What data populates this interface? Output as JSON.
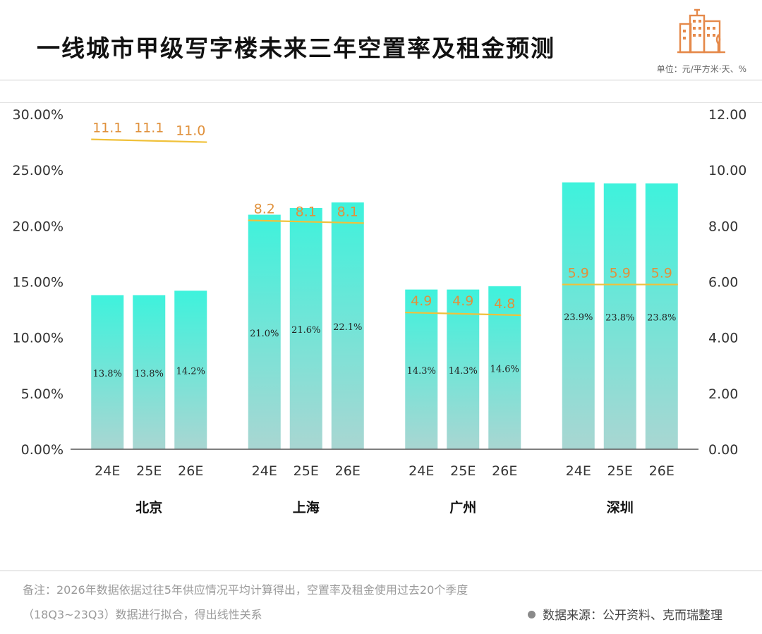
{
  "header": {
    "title": "一线城市甲级写字楼未来三年空置率及租金预测",
    "unit": "单位：元/平方米·天、%"
  },
  "footer": {
    "note_line1": "备注：2026年数据依据过往5年供应情况平均计算得出，空置率及租金使用过去20个季度",
    "note_line2": "（18Q3~23Q3）数据进行拟合，得出线性关系",
    "source": "数据来源：公开资料、克而瑞整理"
  },
  "colors": {
    "bar_top": "#3ef2dc",
    "bar_bottom": "#a9d6d2",
    "rent_label": "#e0913c",
    "rent_line": "#f0c13a",
    "axis": "#555555",
    "logo": "#e5894a"
  },
  "chart_data": {
    "type": "bar",
    "title": "一线城市甲级写字楼未来三年空置率及租金预测",
    "groups": [
      "北京",
      "上海",
      "广州",
      "深圳"
    ],
    "categories": [
      "24E",
      "25E",
      "26E"
    ],
    "series": [
      {
        "name": "空置率",
        "axis": "left",
        "values": [
          [
            13.8,
            13.8,
            14.2
          ],
          [
            21.0,
            21.6,
            22.1
          ],
          [
            14.3,
            14.3,
            14.6
          ],
          [
            23.9,
            23.8,
            23.8
          ]
        ],
        "labels": [
          [
            "13.8%",
            "13.8%",
            "14.2%"
          ],
          [
            "21.0%",
            "21.6%",
            "22.1%"
          ],
          [
            "14.3%",
            "14.3%",
            "14.6%"
          ],
          [
            "23.9%",
            "23.8%",
            "23.8%"
          ]
        ]
      },
      {
        "name": "租金",
        "axis": "right",
        "values": [
          [
            11.1,
            11.1,
            11.0
          ],
          [
            8.2,
            8.1,
            8.1
          ],
          [
            4.9,
            4.9,
            4.8
          ],
          [
            5.9,
            5.9,
            5.9
          ]
        ],
        "labels": [
          [
            "11.1",
            "11.1",
            "11.0"
          ],
          [
            "8.2",
            "8.1",
            "8.1"
          ],
          [
            "4.9",
            "4.9",
            "4.8"
          ],
          [
            "5.9",
            "5.9",
            "5.9"
          ]
        ]
      }
    ],
    "y_left": {
      "range": [
        0,
        30
      ],
      "ticks": [
        0,
        5,
        10,
        15,
        20,
        25,
        30
      ],
      "tick_labels": [
        "0.00%",
        "5.00%",
        "10.00%",
        "15.00%",
        "20.00%",
        "25.00%",
        "30.00%"
      ]
    },
    "y_right": {
      "range": [
        0,
        12
      ],
      "ticks": [
        0,
        2,
        4,
        6,
        8,
        10,
        12
      ],
      "tick_labels": [
        "0.00",
        "2.00",
        "4.00",
        "6.00",
        "8.00",
        "10.00",
        "12.00"
      ]
    },
    "grid": false,
    "legend": "none"
  }
}
